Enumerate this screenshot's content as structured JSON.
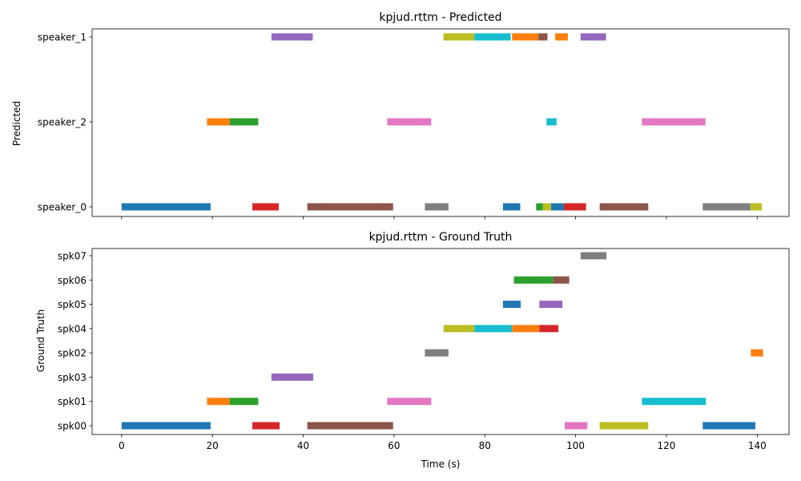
{
  "chart_data": [
    {
      "type": "timeline",
      "title": "kpjud.rttm - Predicted",
      "ylabel": "Predicted",
      "xlabel": "",
      "xlim": [
        -6.5,
        147
      ],
      "xticks": [
        0,
        20,
        40,
        60,
        80,
        100,
        120,
        140
      ],
      "show_xtick_labels": false,
      "categories": [
        "speaker_0",
        "speaker_2",
        "speaker_1"
      ],
      "grid": false,
      "segments": [
        {
          "speaker": "speaker_0",
          "start": 0,
          "end": 19.6,
          "color": "#1f77b4"
        },
        {
          "speaker": "speaker_2",
          "start": 18.8,
          "end": 23.8,
          "color": "#ff7f0e"
        },
        {
          "speaker": "speaker_2",
          "start": 23.8,
          "end": 30.1,
          "color": "#2ca02c"
        },
        {
          "speaker": "speaker_0",
          "start": 28.8,
          "end": 34.6,
          "color": "#d62728"
        },
        {
          "speaker": "speaker_1",
          "start": 33.0,
          "end": 42.1,
          "color": "#9467bd"
        },
        {
          "speaker": "speaker_0",
          "start": 40.9,
          "end": 59.8,
          "color": "#8c564b"
        },
        {
          "speaker": "speaker_2",
          "start": 58.5,
          "end": 68.2,
          "color": "#e377c2"
        },
        {
          "speaker": "speaker_0",
          "start": 66.8,
          "end": 72.0,
          "color": "#7f7f7f"
        },
        {
          "speaker": "speaker_1",
          "start": 70.9,
          "end": 77.7,
          "color": "#bcbd22"
        },
        {
          "speaker": "speaker_1",
          "start": 77.7,
          "end": 85.7,
          "color": "#17becf"
        },
        {
          "speaker": "speaker_0",
          "start": 84.0,
          "end": 87.8,
          "color": "#1f77b4"
        },
        {
          "speaker": "speaker_1",
          "start": 86.0,
          "end": 91.8,
          "color": "#ff7f0e"
        },
        {
          "speaker": "speaker_0",
          "start": 91.3,
          "end": 92.8,
          "color": "#2ca02c"
        },
        {
          "speaker": "speaker_1",
          "start": 91.8,
          "end": 93.8,
          "color": "#8c564b"
        },
        {
          "speaker": "speaker_0",
          "start": 92.8,
          "end": 94.6,
          "color": "#bcbd22"
        },
        {
          "speaker": "speaker_2",
          "start": 93.6,
          "end": 95.8,
          "color": "#17becf"
        },
        {
          "speaker": "speaker_0",
          "start": 94.6,
          "end": 97.4,
          "color": "#1f77b4"
        },
        {
          "speaker": "speaker_1",
          "start": 95.5,
          "end": 98.3,
          "color": "#ff7f0e"
        },
        {
          "speaker": "speaker_0",
          "start": 97.4,
          "end": 102.3,
          "color": "#d62728"
        },
        {
          "speaker": "speaker_1",
          "start": 101.1,
          "end": 106.7,
          "color": "#9467bd"
        },
        {
          "speaker": "speaker_0",
          "start": 105.3,
          "end": 116.0,
          "color": "#8c564b"
        },
        {
          "speaker": "speaker_2",
          "start": 114.6,
          "end": 128.6,
          "color": "#e377c2"
        },
        {
          "speaker": "speaker_0",
          "start": 128.0,
          "end": 138.5,
          "color": "#7f7f7f"
        },
        {
          "speaker": "speaker_0",
          "start": 138.5,
          "end": 141.0,
          "color": "#bcbd22"
        }
      ]
    },
    {
      "type": "timeline",
      "title": "kpjud.rttm - Ground Truth",
      "ylabel": "Ground Truth",
      "xlabel": "Time (s)",
      "xlim": [
        -6.5,
        147
      ],
      "xticks": [
        0,
        20,
        40,
        60,
        80,
        100,
        120,
        140
      ],
      "show_xtick_labels": true,
      "categories": [
        "spk00",
        "spk01",
        "spk03",
        "spk02",
        "spk04",
        "spk05",
        "spk06",
        "spk07"
      ],
      "grid": false,
      "segments": [
        {
          "speaker": "spk00",
          "start": 0,
          "end": 19.6,
          "color": "#1f77b4"
        },
        {
          "speaker": "spk01",
          "start": 18.8,
          "end": 23.8,
          "color": "#ff7f0e"
        },
        {
          "speaker": "spk01",
          "start": 23.8,
          "end": 30.1,
          "color": "#2ca02c"
        },
        {
          "speaker": "spk00",
          "start": 28.8,
          "end": 34.8,
          "color": "#d62728"
        },
        {
          "speaker": "spk03",
          "start": 33.0,
          "end": 42.2,
          "color": "#9467bd"
        },
        {
          "speaker": "spk00",
          "start": 40.9,
          "end": 59.8,
          "color": "#8c564b"
        },
        {
          "speaker": "spk01",
          "start": 58.5,
          "end": 68.2,
          "color": "#e377c2"
        },
        {
          "speaker": "spk02",
          "start": 66.8,
          "end": 72.0,
          "color": "#7f7f7f"
        },
        {
          "speaker": "spk04",
          "start": 70.9,
          "end": 77.7,
          "color": "#bcbd22"
        },
        {
          "speaker": "spk04",
          "start": 77.7,
          "end": 86.0,
          "color": "#17becf"
        },
        {
          "speaker": "spk05",
          "start": 84.0,
          "end": 87.9,
          "color": "#1f77b4"
        },
        {
          "speaker": "spk04",
          "start": 86.0,
          "end": 92.0,
          "color": "#ff7f0e"
        },
        {
          "speaker": "spk06",
          "start": 86.4,
          "end": 95.0,
          "color": "#2ca02c"
        },
        {
          "speaker": "spk04",
          "start": 92.0,
          "end": 96.2,
          "color": "#d62728"
        },
        {
          "speaker": "spk05",
          "start": 92.0,
          "end": 97.1,
          "color": "#9467bd"
        },
        {
          "speaker": "spk06",
          "start": 95.0,
          "end": 98.6,
          "color": "#8c564b"
        },
        {
          "speaker": "spk00",
          "start": 97.6,
          "end": 102.6,
          "color": "#e377c2"
        },
        {
          "speaker": "spk07",
          "start": 101.1,
          "end": 106.8,
          "color": "#7f7f7f"
        },
        {
          "speaker": "spk00",
          "start": 105.3,
          "end": 116.0,
          "color": "#bcbd22"
        },
        {
          "speaker": "spk01",
          "start": 114.6,
          "end": 128.7,
          "color": "#17becf"
        },
        {
          "speaker": "spk00",
          "start": 128.0,
          "end": 139.6,
          "color": "#1f77b4"
        },
        {
          "speaker": "spk02",
          "start": 138.6,
          "end": 141.3,
          "color": "#ff7f0e"
        }
      ]
    }
  ]
}
